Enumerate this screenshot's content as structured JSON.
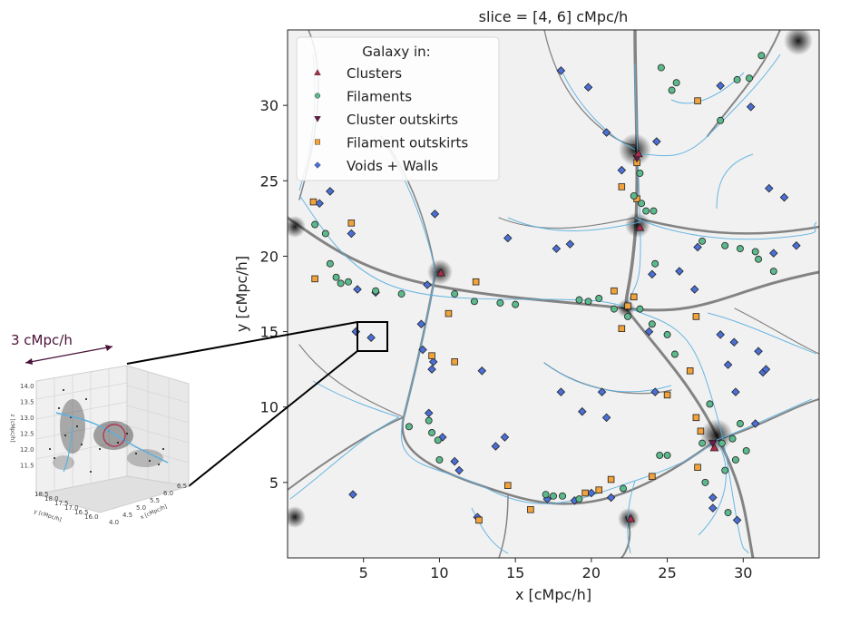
{
  "main": {
    "title": "slice = [4, 6] cMpc/h",
    "xlabel": "x [cMpc/h]",
    "ylabel": "y [cMpc/h]",
    "xticks": [
      "5",
      "10",
      "15",
      "20",
      "25",
      "30"
    ],
    "yticks": [
      "5",
      "10",
      "15",
      "20",
      "25",
      "30"
    ],
    "legend_title": "Galaxy in:",
    "legend": [
      {
        "label": "Clusters",
        "marker": "triangle-up",
        "color": "#b02a4a"
      },
      {
        "label": "Filaments",
        "marker": "circle",
        "color": "#5bb98c"
      },
      {
        "label": "Cluster outskirts",
        "marker": "triangle-down",
        "color": "#6a1a4a"
      },
      {
        "label": "Filament outskirts",
        "marker": "square",
        "color": "#f2a23a"
      },
      {
        "label": "Voids + Walls",
        "marker": "diamond",
        "color": "#4a6fd6"
      }
    ]
  },
  "inset": {
    "scale_label": "3 cMpc/h",
    "z_ticks": [
      "14.0",
      "13.5",
      "13.0",
      "12.5",
      "12.0",
      "11.5"
    ],
    "zlabel": "z [cMpc/h]",
    "y_ticks": [
      "18.5",
      "18.0",
      "17.5",
      "17.0",
      "16.5",
      "16.0"
    ],
    "ylabel": "y [cMpc/h]",
    "x_ticks": [
      "4.0",
      "4.5",
      "5.0",
      "5.5",
      "6.0",
      "6.5"
    ],
    "xlabel": "x [cMpc/h]"
  },
  "colors": {
    "clusters": "#b02a4a",
    "filaments": "#5bb98c",
    "cluster_outskirts": "#6a1a4a",
    "filament_outskirts": "#f2a23a",
    "voids_walls": "#4a6fd6",
    "skeleton": "#5ab0e0",
    "scale_arrow": "#4a1238"
  },
  "chart_data": {
    "type": "scatter",
    "title": "slice = [4, 6] cMpc/h",
    "xlabel": "x [cMpc/h]",
    "ylabel": "y [cMpc/h]",
    "xlim": [
      0,
      35
    ],
    "ylim": [
      0,
      35
    ],
    "legend_position": "top-left",
    "series": [
      {
        "name": "Clusters",
        "points": [
          [
            23.1,
            26.8
          ],
          [
            23.2,
            21.9
          ],
          [
            10.1,
            18.9
          ],
          [
            28.1,
            7.3
          ],
          [
            22.6,
            2.6
          ]
        ]
      },
      {
        "name": "Filaments",
        "points": [
          [
            1.8,
            22.1
          ],
          [
            2.5,
            21.5
          ],
          [
            2.8,
            19.5
          ],
          [
            3.2,
            18.6
          ],
          [
            3.5,
            18.2
          ],
          [
            4.0,
            18.3
          ],
          [
            5.8,
            17.7
          ],
          [
            7.5,
            17.5
          ],
          [
            11.0,
            17.5
          ],
          [
            12.3,
            17.0
          ],
          [
            14.0,
            16.9
          ],
          [
            15.0,
            16.8
          ],
          [
            19.2,
            17.1
          ],
          [
            19.8,
            17.0
          ],
          [
            20.5,
            17.2
          ],
          [
            21.5,
            16.5
          ],
          [
            22.4,
            16.0
          ],
          [
            23.2,
            16.5
          ],
          [
            24.0,
            15.5
          ],
          [
            25.0,
            14.8
          ],
          [
            25.5,
            13.5
          ],
          [
            22.8,
            24.0
          ],
          [
            23.3,
            23.5
          ],
          [
            23.6,
            23.0
          ],
          [
            24.2,
            19.5
          ],
          [
            24.1,
            23.0
          ],
          [
            23.2,
            25.5
          ],
          [
            27.3,
            21.0
          ],
          [
            28.8,
            20.7
          ],
          [
            29.8,
            20.5
          ],
          [
            30.8,
            20.3
          ],
          [
            31.0,
            19.8
          ],
          [
            32.0,
            19.0
          ],
          [
            24.6,
            32.5
          ],
          [
            25.3,
            31.0
          ],
          [
            25.6,
            31.5
          ],
          [
            29.6,
            31.7
          ],
          [
            30.4,
            31.8
          ],
          [
            31.2,
            33.3
          ],
          [
            28.5,
            29.0
          ],
          [
            9.3,
            9.1
          ],
          [
            9.5,
            8.3
          ],
          [
            8.0,
            8.7
          ],
          [
            9.9,
            7.8
          ],
          [
            10.0,
            6.5
          ],
          [
            17.0,
            4.2
          ],
          [
            17.5,
            4.1
          ],
          [
            18.1,
            4.1
          ],
          [
            19.2,
            3.9
          ],
          [
            22.1,
            4.6
          ],
          [
            24.5,
            6.8
          ],
          [
            25.0,
            6.8
          ],
          [
            27.3,
            7.6
          ],
          [
            28.6,
            7.6
          ],
          [
            29.3,
            7.9
          ],
          [
            29.8,
            8.9
          ],
          [
            27.8,
            10.2
          ],
          [
            28.8,
            5.8
          ],
          [
            29.5,
            6.5
          ],
          [
            30.2,
            7.1
          ],
          [
            27.5,
            5.0
          ],
          [
            29.0,
            3.0
          ]
        ]
      },
      {
        "name": "Cluster outskirts",
        "points": [
          [
            23.0,
            26.5
          ],
          [
            28.0,
            7.6
          ]
        ]
      },
      {
        "name": "Filament outskirts",
        "points": [
          [
            1.7,
            23.6
          ],
          [
            4.2,
            22.2
          ],
          [
            1.8,
            18.5
          ],
          [
            12.4,
            18.3
          ],
          [
            22.0,
            24.6
          ],
          [
            23.0,
            23.8
          ],
          [
            23.0,
            26.2
          ],
          [
            21.5,
            17.7
          ],
          [
            22.8,
            17.3
          ],
          [
            22.0,
            15.2
          ],
          [
            22.4,
            16.7
          ],
          [
            26.9,
            16.0
          ],
          [
            27.0,
            30.3
          ],
          [
            10.6,
            16.2
          ],
          [
            9.5,
            13.4
          ],
          [
            11.0,
            13.0
          ],
          [
            25.0,
            10.8
          ],
          [
            26.5,
            12.4
          ],
          [
            26.9,
            9.3
          ],
          [
            27.2,
            8.4
          ],
          [
            27.0,
            6.0
          ],
          [
            24.0,
            5.4
          ],
          [
            21.3,
            5.2
          ],
          [
            20.5,
            4.5
          ],
          [
            19.6,
            4.3
          ],
          [
            16.0,
            3.2
          ],
          [
            14.5,
            4.8
          ],
          [
            12.6,
            2.5
          ]
        ]
      },
      {
        "name": "Voids + Walls",
        "points": [
          [
            18.0,
            32.3
          ],
          [
            19.8,
            31.2
          ],
          [
            21.0,
            28.2
          ],
          [
            22.0,
            25.7
          ],
          [
            24.3,
            27.6
          ],
          [
            28.5,
            31.3
          ],
          [
            30.5,
            29.9
          ],
          [
            31.7,
            24.5
          ],
          [
            32.7,
            23.9
          ],
          [
            33.5,
            20.7
          ],
          [
            32.0,
            20.2
          ],
          [
            27.0,
            20.6
          ],
          [
            25.8,
            19.0
          ],
          [
            24.0,
            18.8
          ],
          [
            26.8,
            17.8
          ],
          [
            23.8,
            15.0
          ],
          [
            28.5,
            14.8
          ],
          [
            29.4,
            14.3
          ],
          [
            31.0,
            13.7
          ],
          [
            31.3,
            12.3
          ],
          [
            29.0,
            12.8
          ],
          [
            29.5,
            11.0
          ],
          [
            30.8,
            8.9
          ],
          [
            28.0,
            4.0
          ],
          [
            28.0,
            3.3
          ],
          [
            29.6,
            2.5
          ],
          [
            21.0,
            9.3
          ],
          [
            20.7,
            11.0
          ],
          [
            18.0,
            11.0
          ],
          [
            19.4,
            9.7
          ],
          [
            13.7,
            7.4
          ],
          [
            17.1,
            3.9
          ],
          [
            18.9,
            3.8
          ],
          [
            20.0,
            4.3
          ],
          [
            21.3,
            4.0
          ],
          [
            14.5,
            21.2
          ],
          [
            18.6,
            20.8
          ],
          [
            17.7,
            20.5
          ],
          [
            14.3,
            8.0
          ],
          [
            12.8,
            12.4
          ],
          [
            9.5,
            12.5
          ],
          [
            9.6,
            13.0
          ],
          [
            8.9,
            13.8
          ],
          [
            9.3,
            9.6
          ],
          [
            10.2,
            8.0
          ],
          [
            11.0,
            6.4
          ],
          [
            11.3,
            5.8
          ],
          [
            2.8,
            24.3
          ],
          [
            2.1,
            23.5
          ],
          [
            4.2,
            21.5
          ],
          [
            9.7,
            22.8
          ],
          [
            9.2,
            18.1
          ],
          [
            4.6,
            17.8
          ],
          [
            5.5,
            14.6
          ],
          [
            5.8,
            17.6
          ],
          [
            4.5,
            15.0
          ],
          [
            4.3,
            4.2
          ],
          [
            12.5,
            2.7
          ],
          [
            8.8,
            15.5
          ],
          [
            31.5,
            12.5
          ],
          [
            24.2,
            11.0
          ]
        ]
      }
    ]
  }
}
